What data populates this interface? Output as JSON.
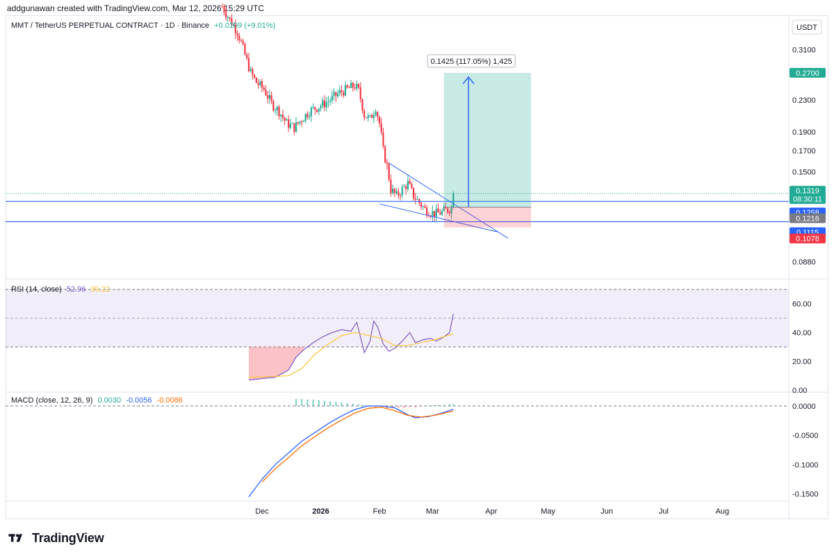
{
  "header": {
    "created_by": "addgunawan created with TradingView.com, Mar 12, 2026 15:29 UTC"
  },
  "footer": {
    "brand": "TradingView"
  },
  "chart_data": [
    {
      "type": "candlestick",
      "title": "MMT / TetherUS PERPETUAL CONTRACT · 1D · Binance",
      "change": "+0.0109 (+9.01%)",
      "currency": "USDT",
      "y_ticks": [
        "0.3100",
        "0.2300",
        "0.1900",
        "0.1700",
        "0.1500",
        "0.0880"
      ],
      "y_tick_values": [
        0.31,
        0.23,
        0.19,
        0.17,
        0.15,
        0.088
      ],
      "ylim": [
        0.08,
        0.38
      ],
      "scale": "log",
      "x_ticks": [
        "Dec",
        "2026",
        "Feb",
        "Mar",
        "Apr",
        "May",
        "Jun",
        "Jul",
        "Aug"
      ],
      "price_badges": [
        {
          "label": "0.2700",
          "value": 0.27,
          "color": "#22ab94"
        },
        {
          "label": "0.1319",
          "value": 0.1319,
          "color": "#22ab94"
        },
        {
          "label": "08:30:11",
          "value": 0.1319,
          "color": "#22ab94"
        },
        {
          "label": "0.1258",
          "value": 0.1258,
          "color": "#2962ff"
        },
        {
          "label": "0.1216",
          "value": 0.1216,
          "color": "#787b86"
        },
        {
          "label": "0.1115",
          "value": 0.1115,
          "color": "#2962ff"
        },
        {
          "label": "0.1078",
          "value": 0.1078,
          "color": "#f23645"
        }
      ],
      "horizontal_lines": [
        0.1258,
        0.1115
      ],
      "position_tool": {
        "entry": 0.1216,
        "target": 0.27,
        "stop": 0.1078,
        "label": "0.1425 (117.05%) 1,425"
      },
      "close_points": [
        [
          "Nov 10",
          0.4
        ],
        [
          "Nov 14",
          0.37
        ],
        [
          "Nov 18",
          0.345
        ],
        [
          "Nov 22",
          0.3
        ],
        [
          "Nov 25",
          0.27
        ],
        [
          "Nov 28",
          0.255
        ],
        [
          "Dec 2",
          0.245
        ],
        [
          "Dec 6",
          0.225
        ],
        [
          "Dec 10",
          0.215
        ],
        [
          "Dec 14",
          0.2
        ],
        [
          "Dec 18",
          0.195
        ],
        [
          "Dec 22",
          0.205
        ],
        [
          "Dec 26",
          0.215
        ],
        [
          "Dec 30",
          0.22
        ],
        [
          "Jan 3",
          0.225
        ],
        [
          "Jan 7",
          0.232
        ],
        [
          "Jan 11",
          0.24
        ],
        [
          "Jan 15",
          0.245
        ],
        [
          "Jan 19",
          0.25
        ],
        [
          "Jan 21",
          0.243
        ],
        [
          "Jan 24",
          0.21
        ],
        [
          "Jan 27",
          0.205
        ],
        [
          "Jan 30",
          0.22
        ],
        [
          "Feb 1",
          0.2
        ],
        [
          "Feb 3",
          0.17
        ],
        [
          "Feb 5",
          0.155
        ],
        [
          "Feb 7",
          0.135
        ],
        [
          "Feb 10",
          0.13
        ],
        [
          "Feb 13",
          0.135
        ],
        [
          "Feb 16",
          0.14
        ],
        [
          "Feb 19",
          0.13
        ],
        [
          "Feb 22",
          0.125
        ],
        [
          "Feb 25",
          0.12
        ],
        [
          "Feb 28",
          0.118
        ],
        [
          "Mar 3",
          0.117
        ],
        [
          "Mar 6",
          0.118
        ],
        [
          "Mar 9",
          0.12
        ],
        [
          "Mar 11",
          0.121
        ],
        [
          "Mar 12",
          0.1319
        ]
      ]
    },
    {
      "type": "line",
      "title": "RSI (14, close)",
      "legend_values": [
        "52.96",
        "39.22"
      ],
      "y_ticks": [
        "60.00",
        "40.00",
        "20.00",
        "0.00"
      ],
      "ylim": [
        0,
        70
      ],
      "band": [
        30,
        70
      ],
      "series": [
        {
          "name": "RSI",
          "color": "#7e57c2",
          "points": [
            [
              "Nov 24",
              7
            ],
            [
              "Dec 1",
              8
            ],
            [
              "Dec 8",
              9
            ],
            [
              "Dec 15",
              14
            ],
            [
              "Dec 19",
              23
            ],
            [
              "Dec 23",
              28
            ],
            [
              "Dec 28",
              33
            ],
            [
              "Jan 2",
              37
            ],
            [
              "Jan 7",
              40
            ],
            [
              "Jan 12",
              42
            ],
            [
              "Jan 17",
              41
            ],
            [
              "Jan 20",
              47
            ],
            [
              "Jan 22",
              37
            ],
            [
              "Jan 24",
              26
            ],
            [
              "Jan 27",
              34
            ],
            [
              "Jan 29",
              48
            ],
            [
              "Jan 31",
              44
            ],
            [
              "Feb 3",
              32
            ],
            [
              "Feb 6",
              27
            ],
            [
              "Feb 9",
              29
            ],
            [
              "Feb 13",
              34
            ],
            [
              "Feb 17",
              40
            ],
            [
              "Feb 20",
              33
            ],
            [
              "Feb 24",
              35
            ],
            [
              "Feb 28",
              36
            ],
            [
              "Mar 3",
              34
            ],
            [
              "Mar 7",
              37
            ],
            [
              "Mar 10",
              40
            ],
            [
              "Mar 12",
              52.96
            ]
          ]
        },
        {
          "name": "MA",
          "color": "#f9c434",
          "points": [
            [
              "Nov 24",
              9
            ],
            [
              "Dec 8",
              9.5
            ],
            [
              "Dec 15",
              10
            ],
            [
              "Dec 22",
              15
            ],
            [
              "Dec 29",
              25
            ],
            [
              "Jan 5",
              32
            ],
            [
              "Jan 12",
              38
            ],
            [
              "Jan 19",
              40
            ],
            [
              "Jan 26",
              38
            ],
            [
              "Feb 2",
              36
            ],
            [
              "Feb 9",
              31
            ],
            [
              "Feb 16",
              31
            ],
            [
              "Feb 23",
              33
            ],
            [
              "Mar 2",
              35
            ],
            [
              "Mar 12",
              39.22
            ]
          ]
        }
      ]
    },
    {
      "type": "line",
      "title": "MACD (close, 12, 26, 9)",
      "legend_values": [
        "0.0030",
        "-0.0056",
        "-0.0086"
      ],
      "y_ticks": [
        "0.0000",
        "-0.0500",
        "-0.1000",
        "-0.1500"
      ],
      "ylim": [
        -0.16,
        0.02
      ],
      "series": [
        {
          "name": "MACD",
          "color": "#2962ff",
          "points": [
            [
              "Nov 24",
              -0.155
            ],
            [
              "Dec 1",
              -0.125
            ],
            [
              "Dec 8",
              -0.1
            ],
            [
              "Dec 15",
              -0.08
            ],
            [
              "Dec 22",
              -0.06
            ],
            [
              "Dec 29",
              -0.045
            ],
            [
              "Jan 5",
              -0.03
            ],
            [
              "Jan 12",
              -0.017
            ],
            [
              "Jan 19",
              -0.006
            ],
            [
              "Jan 26",
              0.0
            ],
            [
              "Feb 2",
              0.0
            ],
            [
              "Feb 9",
              -0.003
            ],
            [
              "Feb 16",
              -0.015
            ],
            [
              "Feb 20",
              -0.02
            ],
            [
              "Feb 27",
              -0.018
            ],
            [
              "Mar 5",
              -0.013
            ],
            [
              "Mar 12",
              -0.0056
            ]
          ]
        },
        {
          "name": "Signal",
          "color": "#ff6d00",
          "points": [
            [
              "Dec 1",
              -0.13
            ],
            [
              "Dec 8",
              -0.107
            ],
            [
              "Dec 15",
              -0.088
            ],
            [
              "Dec 22",
              -0.068
            ],
            [
              "Dec 29",
              -0.052
            ],
            [
              "Jan 5",
              -0.037
            ],
            [
              "Jan 12",
              -0.024
            ],
            [
              "Jan 19",
              -0.012
            ],
            [
              "Jan 26",
              -0.004
            ],
            [
              "Feb 2",
              -0.002
            ],
            [
              "Feb 9",
              -0.008
            ],
            [
              "Feb 16",
              -0.016
            ],
            [
              "Feb 23",
              -0.019
            ],
            [
              "Mar 2",
              -0.016
            ],
            [
              "Mar 12",
              -0.0086
            ]
          ]
        }
      ],
      "histogram": [
        [
          "Dec 19",
          0.012
        ],
        [
          "Dec 22",
          0.012
        ],
        [
          "Dec 25",
          0.011
        ],
        [
          "Dec 28",
          0.011
        ],
        [
          "Dec 31",
          0.01
        ],
        [
          "Jan 3",
          0.009
        ],
        [
          "Jan 6",
          0.008
        ],
        [
          "Jan 9",
          0.007
        ],
        [
          "Jan 12",
          0.006
        ],
        [
          "Jan 15",
          0.005
        ],
        [
          "Jan 18",
          0.004
        ],
        [
          "Jan 21",
          0.003
        ],
        [
          "Jan 24",
          0.002
        ],
        [
          "Jan 27",
          0.0
        ],
        [
          "Jan 30",
          -0.002
        ],
        [
          "Feb 2",
          -0.003
        ],
        [
          "Feb 5",
          -0.004
        ],
        [
          "Feb 8",
          -0.004
        ],
        [
          "Feb 11",
          -0.003
        ],
        [
          "Feb 14",
          -0.003
        ],
        [
          "Feb 17",
          -0.002
        ],
        [
          "Feb 20",
          -0.002
        ],
        [
          "Feb 23",
          -0.001
        ],
        [
          "Feb 26",
          0.001
        ],
        [
          "Mar 1",
          0.001
        ],
        [
          "Mar 4",
          0.002
        ],
        [
          "Mar 7",
          0.002
        ],
        [
          "Mar 10",
          0.003
        ],
        [
          "Mar 12",
          0.003
        ]
      ]
    }
  ]
}
